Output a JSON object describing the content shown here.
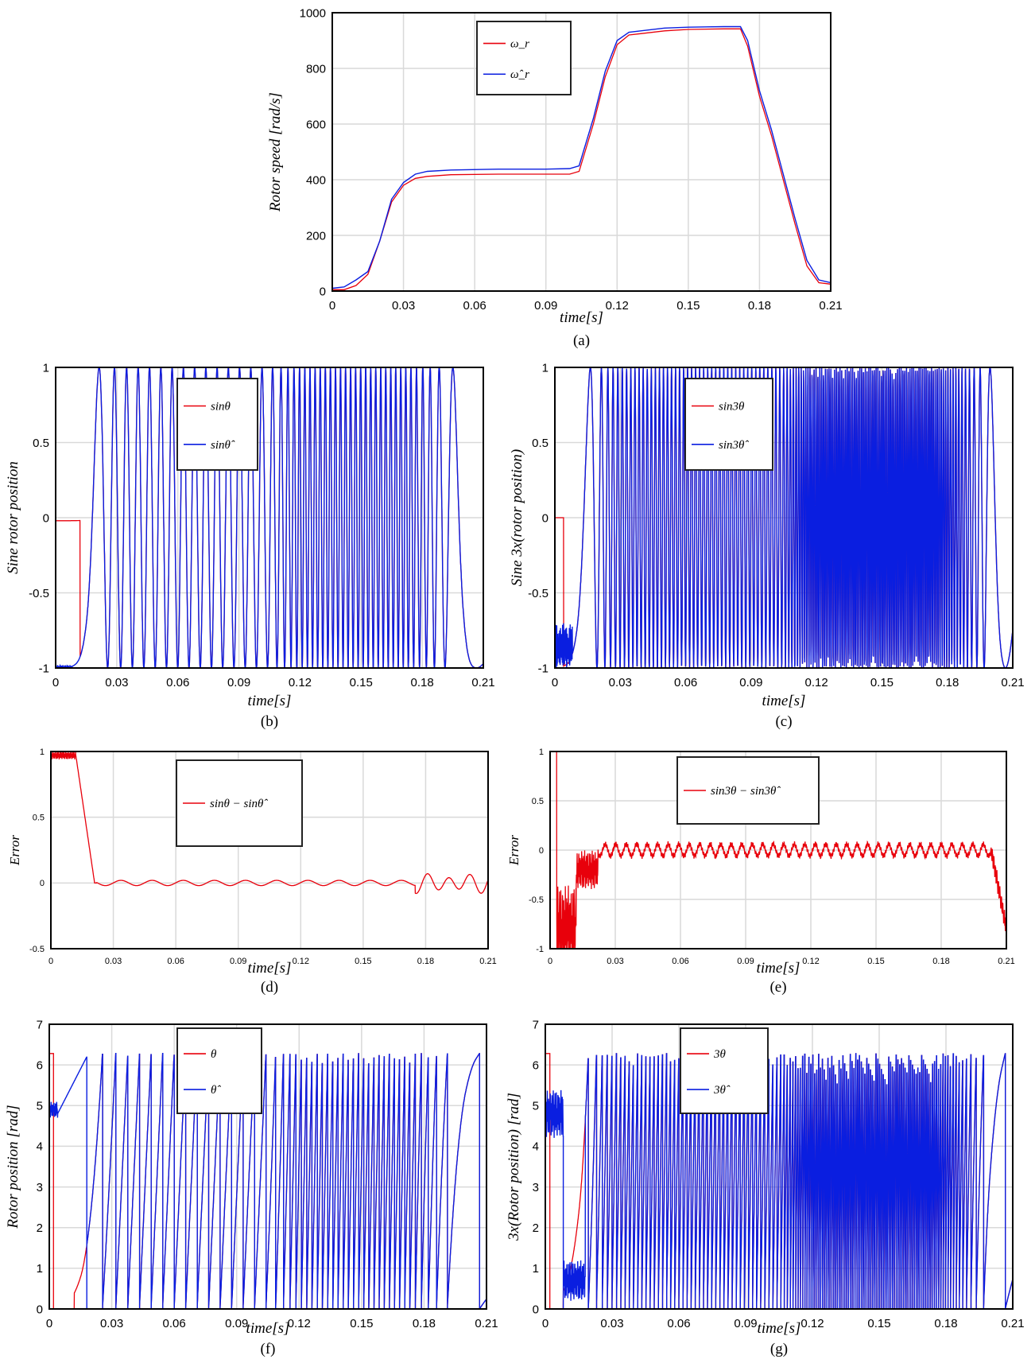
{
  "colors": {
    "red": "#e8000b",
    "blue": "#0a1ee0",
    "purple": "#6a2fa8",
    "grid": "#d9d9d9",
    "axis": "#000000"
  },
  "chart_data": [
    {
      "id": "a",
      "type": "line",
      "panel_label": "(a)",
      "xlabel": "time[s]",
      "ylabel": "Rotor speed [rad/s]",
      "xlim": [
        0,
        0.21
      ],
      "ylim": [
        0,
        1000
      ],
      "xticks": [
        "0",
        "0.03",
        "0.06",
        "0.09",
        "0.12",
        "0.15",
        "0.18",
        "0.21"
      ],
      "yticks": [
        "0",
        "200",
        "400",
        "600",
        "800",
        "1000"
      ],
      "grid": true,
      "legend": "top-center",
      "series": [
        {
          "name": "ω_r",
          "color": "red",
          "x": [
            0,
            0.005,
            0.01,
            0.015,
            0.02,
            0.025,
            0.03,
            0.035,
            0.04,
            0.05,
            0.07,
            0.09,
            0.1,
            0.104,
            0.11,
            0.115,
            0.12,
            0.125,
            0.13,
            0.14,
            0.15,
            0.165,
            0.172,
            0.175,
            0.18,
            0.185,
            0.19,
            0.195,
            0.2,
            0.205,
            0.21
          ],
          "y": [
            5,
            5,
            20,
            60,
            180,
            320,
            380,
            405,
            412,
            418,
            420,
            420,
            420,
            430,
            600,
            770,
            885,
            920,
            925,
            935,
            940,
            942,
            942,
            880,
            700,
            560,
            400,
            240,
            90,
            30,
            25
          ]
        },
        {
          "name": "ω̂_r",
          "color": "blue",
          "x": [
            0,
            0.005,
            0.01,
            0.015,
            0.02,
            0.025,
            0.03,
            0.035,
            0.04,
            0.05,
            0.07,
            0.09,
            0.1,
            0.104,
            0.11,
            0.115,
            0.12,
            0.125,
            0.13,
            0.14,
            0.15,
            0.165,
            0.172,
            0.175,
            0.18,
            0.185,
            0.19,
            0.195,
            0.2,
            0.205,
            0.21
          ],
          "y": [
            10,
            15,
            40,
            70,
            180,
            330,
            390,
            420,
            430,
            435,
            438,
            438,
            440,
            450,
            620,
            790,
            900,
            930,
            935,
            945,
            948,
            950,
            950,
            900,
            720,
            580,
            420,
            260,
            110,
            40,
            30
          ]
        }
      ]
    },
    {
      "id": "b",
      "type": "line",
      "panel_label": "(b)",
      "xlabel": "time[s]",
      "ylabel": "Sine rotor position",
      "xlim": [
        0,
        0.21
      ],
      "ylim": [
        -1,
        1
      ],
      "xticks": [
        "0",
        "0.03",
        "0.06",
        "0.09",
        "0.12",
        "0.15",
        "0.18",
        "0.21"
      ],
      "yticks": [
        "-1",
        "-0.5",
        "0",
        "0.5",
        "1"
      ],
      "grid": true,
      "legend": "top-center",
      "series": [
        {
          "name": "sinθ",
          "color": "red",
          "formula": "sin"
        },
        {
          "name": "sinθ̂",
          "color": "blue",
          "formula": "sin-est"
        }
      ]
    },
    {
      "id": "c",
      "type": "line",
      "panel_label": "(c)",
      "xlabel": "time[s]",
      "ylabel": "Sine 3x(rotor position)",
      "xlim": [
        0,
        0.21
      ],
      "ylim": [
        -1,
        1
      ],
      "xticks": [
        "0",
        "0.03",
        "0.06",
        "0.09",
        "0.12",
        "0.15",
        "0.18",
        "0.21"
      ],
      "yticks": [
        "-1",
        "-0.5",
        "0",
        "0.5",
        "1"
      ],
      "grid": true,
      "legend": "top-center",
      "series": [
        {
          "name": "sin3θ",
          "color": "red",
          "formula": "sin3"
        },
        {
          "name": "sin3θ̂",
          "color": "blue",
          "formula": "sin3-est"
        }
      ]
    },
    {
      "id": "d",
      "type": "line",
      "panel_label": "(d)",
      "xlabel": "time[s]",
      "ylabel": "Error",
      "xlim": [
        0,
        0.21
      ],
      "ylim": [
        -0.5,
        1
      ],
      "xticks": [
        "0",
        "0.03",
        "0.06",
        "0.09",
        "0.12",
        "0.15",
        "0.18",
        "0.21"
      ],
      "yticks": [
        "-0.5",
        "0",
        "0.5",
        "1"
      ],
      "grid": true,
      "legend": "top-center",
      "series": [
        {
          "name": "sinθ − sinθ̂",
          "color": "red",
          "formula": "err1"
        }
      ]
    },
    {
      "id": "e",
      "type": "line",
      "panel_label": "(e)",
      "xlabel": "time[s]",
      "ylabel": "Error",
      "xlim": [
        0,
        0.21
      ],
      "ylim": [
        -1,
        1
      ],
      "xticks": [
        "0",
        "0.03",
        "0.06",
        "0.09",
        "0.12",
        "0.15",
        "0.18",
        "0.21"
      ],
      "yticks": [
        "-1",
        "-0.5",
        "0",
        "0.5",
        "1"
      ],
      "grid": true,
      "legend": "top-center",
      "series": [
        {
          "name": "sin3θ − sin3θ̂",
          "color": "red",
          "formula": "err3"
        }
      ]
    },
    {
      "id": "f",
      "type": "line",
      "panel_label": "(f)",
      "xlabel": "time[s]",
      "ylabel": "Rotor position [rad]",
      "xlim": [
        0,
        0.21
      ],
      "ylim": [
        0,
        7
      ],
      "xticks": [
        "0",
        "0.03",
        "0.06",
        "0.09",
        "0.12",
        "0.15",
        "0.18",
        "0.21"
      ],
      "yticks": [
        "0",
        "1",
        "2",
        "3",
        "4",
        "5",
        "6",
        "7"
      ],
      "grid": true,
      "legend": "top-center",
      "series": [
        {
          "name": "θ",
          "color": "red",
          "formula": "theta"
        },
        {
          "name": "θ̂",
          "color": "blue",
          "formula": "theta-est"
        }
      ]
    },
    {
      "id": "g",
      "type": "line",
      "panel_label": "(g)",
      "xlabel": "time[s]",
      "ylabel": "3x(Rotor position) [rad]",
      "xlim": [
        0,
        0.21
      ],
      "ylim": [
        0,
        7
      ],
      "xticks": [
        "0",
        "0.03",
        "0.06",
        "0.09",
        "0.12",
        "0.15",
        "0.18",
        "0.21"
      ],
      "yticks": [
        "0",
        "1",
        "2",
        "3",
        "4",
        "5",
        "6",
        "7"
      ],
      "grid": true,
      "legend": "top-center",
      "series": [
        {
          "name": "3θ",
          "color": "red",
          "formula": "theta3"
        },
        {
          "name": "3θ̂",
          "color": "blue",
          "formula": "theta3-est"
        }
      ]
    }
  ]
}
